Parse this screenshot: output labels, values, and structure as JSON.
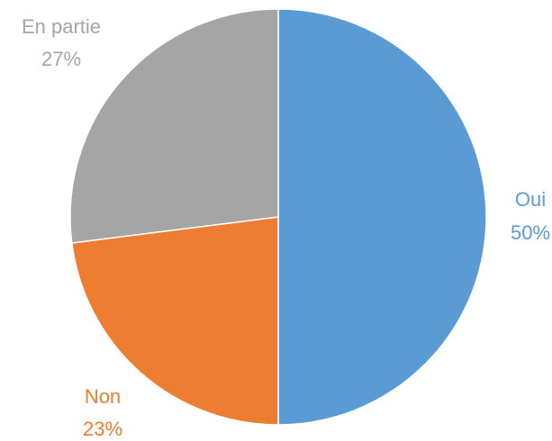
{
  "chart_data": {
    "type": "pie",
    "title": "",
    "slices": [
      {
        "name": "Oui",
        "value": 50,
        "label": "50%",
        "color": "#5B9BD5"
      },
      {
        "name": "Non",
        "value": 23,
        "label": "23%",
        "color": "#ED7D31"
      },
      {
        "name": "En partie",
        "value": 27,
        "label": "27%",
        "color": "#A5A5A5"
      }
    ],
    "start_angle_deg": 0,
    "direction": "clockwise",
    "legend": "none",
    "data_labels": "outside"
  }
}
